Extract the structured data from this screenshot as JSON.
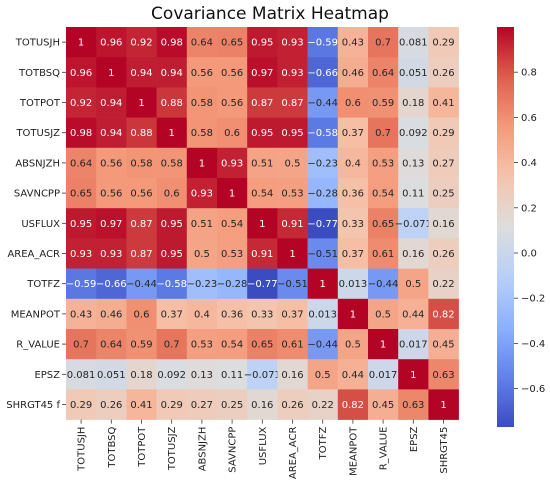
{
  "chart_data": {
    "type": "heatmap",
    "title": "Covariance Matrix Heatmap",
    "xlabel": "",
    "ylabel": "",
    "row_labels": [
      "TOTUSJH",
      "TOTBSQ",
      "TOTPOT",
      "TOTUSJZ",
      "ABSNJZH",
      "SAVNCPP",
      "USFLUX",
      "AREA_ACR",
      "TOTFZ",
      "MEANPOT",
      "R_VALUE",
      "EPSZ",
      "SHRGT45 f"
    ],
    "col_labels": [
      "TOTUSJH",
      "TOTBSQ",
      "TOTPOT",
      "TOTUSJZ",
      "ABSNJZH",
      "SAVNCPP",
      "USFLUX",
      "AREA_ACR",
      "TOTFZ",
      "MEANPOT",
      "R_VALUE",
      "EPSZ",
      "SHRGT45"
    ],
    "values": [
      [
        1,
        0.96,
        0.92,
        0.98,
        0.64,
        0.65,
        0.95,
        0.93,
        -0.59,
        0.43,
        0.7,
        0.081,
        0.29
      ],
      [
        0.96,
        1,
        0.94,
        0.94,
        0.56,
        0.56,
        0.97,
        0.93,
        -0.66,
        0.46,
        0.64,
        0.051,
        0.26
      ],
      [
        0.92,
        0.94,
        1,
        0.88,
        0.58,
        0.56,
        0.87,
        0.87,
        -0.44,
        0.6,
        0.59,
        0.18,
        0.41
      ],
      [
        0.98,
        0.94,
        0.88,
        1,
        0.58,
        0.6,
        0.95,
        0.95,
        -0.58,
        0.37,
        0.7,
        0.092,
        0.29
      ],
      [
        0.64,
        0.56,
        0.58,
        0.58,
        1,
        0.93,
        0.51,
        0.5,
        -0.23,
        0.4,
        0.53,
        0.13,
        0.27
      ],
      [
        0.65,
        0.56,
        0.56,
        0.6,
        0.93,
        1,
        0.54,
        0.53,
        -0.28,
        0.36,
        0.54,
        0.11,
        0.25
      ],
      [
        0.95,
        0.97,
        0.87,
        0.95,
        0.51,
        0.54,
        1,
        0.91,
        -0.77,
        0.33,
        0.65,
        -0.071,
        0.16
      ],
      [
        0.93,
        0.93,
        0.87,
        0.95,
        0.5,
        0.53,
        0.91,
        1,
        -0.51,
        0.37,
        0.61,
        0.16,
        0.26
      ],
      [
        -0.59,
        -0.66,
        -0.44,
        -0.58,
        -0.23,
        -0.28,
        -0.77,
        -0.51,
        1,
        0.013,
        -0.44,
        0.5,
        0.22
      ],
      [
        0.43,
        0.46,
        0.6,
        0.37,
        0.4,
        0.36,
        0.33,
        0.37,
        0.013,
        1,
        0.5,
        0.44,
        0.82
      ],
      [
        0.7,
        0.64,
        0.59,
        0.7,
        0.53,
        0.54,
        0.65,
        0.61,
        -0.44,
        0.5,
        1,
        0.017,
        0.45
      ],
      [
        0.081,
        0.051,
        0.18,
        0.092,
        0.13,
        0.11,
        -0.071,
        0.16,
        0.5,
        0.44,
        0.017,
        1,
        0.63
      ],
      [
        0.29,
        0.26,
        0.41,
        0.29,
        0.27,
        0.25,
        0.16,
        0.26,
        0.22,
        0.82,
        0.45,
        0.63,
        1
      ]
    ],
    "colormap": "coolwarm",
    "colorbar": {
      "range": [
        -0.77,
        1
      ],
      "ticks": [
        -0.6,
        -0.4,
        -0.2,
        0.0,
        0.2,
        0.4,
        0.6,
        0.8
      ],
      "tick_labels": [
        "−0.6",
        "−0.4",
        "−0.2",
        "0.0",
        "0.2",
        "0.4",
        "0.6",
        "0.8"
      ]
    },
    "annotations": true,
    "grid": false
  }
}
